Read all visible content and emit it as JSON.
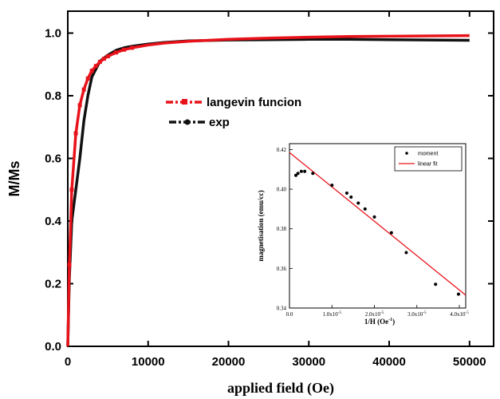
{
  "chart_data": [
    {
      "type": "line",
      "xlabel": "applied field (Oe)",
      "ylabel": "M/Ms",
      "xlim": [
        0,
        53000
      ],
      "ylim": [
        0,
        1.07
      ],
      "xticks": [
        0,
        10000,
        20000,
        30000,
        40000,
        50000
      ],
      "yticks": [
        0.0,
        0.2,
        0.4,
        0.6,
        0.8,
        1.0
      ],
      "ytick_labels": [
        "0.0",
        "0.2",
        "0.4",
        "0.6",
        "0.8",
        "1.0"
      ],
      "legend_position": "center",
      "series": [
        {
          "name": "langevin funcion",
          "color": "#e8121a",
          "style": "dash-dot with square markers",
          "x": [
            0,
            200,
            500,
            1000,
            1500,
            2000,
            2500,
            3000,
            3500,
            4000,
            4500,
            5000,
            6000,
            7000,
            8000,
            10000,
            12000,
            15000,
            20000,
            25000,
            30000,
            35000,
            40000,
            45000,
            50000
          ],
          "y": [
            0.0,
            0.26,
            0.5,
            0.68,
            0.77,
            0.82,
            0.855,
            0.88,
            0.895,
            0.908,
            0.918,
            0.926,
            0.938,
            0.947,
            0.953,
            0.962,
            0.968,
            0.974,
            0.98,
            0.984,
            0.987,
            0.989,
            0.99,
            0.991,
            0.992
          ]
        },
        {
          "name": "exp",
          "color": "#111111",
          "style": "dash-dot with circle markers",
          "x": [
            0,
            200,
            500,
            1000,
            1500,
            2000,
            2500,
            3000,
            4000,
            5000,
            6000,
            7000,
            8000,
            10000,
            12000,
            15000,
            20000,
            25000,
            30000,
            35000,
            40000,
            45000,
            50000
          ],
          "y": [
            0.0,
            0.22,
            0.4,
            0.5,
            0.6,
            0.72,
            0.8,
            0.86,
            0.91,
            0.93,
            0.945,
            0.953,
            0.958,
            0.965,
            0.97,
            0.975,
            0.978,
            0.979,
            0.98,
            0.98,
            0.979,
            0.978,
            0.977
          ]
        }
      ]
    },
    {
      "type": "scatter",
      "xlabel": "1/H  (Oe",
      "xlabel_sup": "-1",
      "xlabel_close": ")",
      "ylabel": "magnetisation (emu/cc)",
      "xlim": [
        0,
        4.15e-05
      ],
      "ylim": [
        0.34,
        0.423
      ],
      "xticks": [
        0,
        1e-05,
        2e-05,
        3e-05,
        4e-05
      ],
      "xtick_labels": [
        "0.0",
        "1.0x10",
        "2.0x10",
        "3.0x10",
        "4.0x10"
      ],
      "xtick_sup": "-5",
      "yticks": [
        0.34,
        0.36,
        0.38,
        0.4,
        0.42
      ],
      "ytick_labels": [
        "0.34",
        "0.36",
        "0.38",
        "0.40",
        "0.42"
      ],
      "legend_position": "top-right",
      "series": [
        {
          "name": "moment",
          "color": "#000000",
          "x": [
            1.5e-06,
            2e-06,
            2.8e-06,
            3.6e-06,
            5.5e-06,
            1e-05,
            1.35e-05,
            1.45e-05,
            1.62e-05,
            1.78e-05,
            2e-05,
            2.4e-05,
            2.75e-05,
            3.44e-05,
            3.98e-05
          ],
          "y": [
            0.407,
            0.408,
            0.409,
            0.409,
            0.408,
            0.402,
            0.398,
            0.396,
            0.393,
            0.39,
            0.386,
            0.378,
            0.368,
            0.352,
            0.347
          ]
        },
        {
          "name": "linear fit",
          "color": "#e8121a",
          "x": [
            0,
            4.15e-05
          ],
          "y": [
            0.4185,
            0.3465
          ]
        }
      ]
    }
  ]
}
